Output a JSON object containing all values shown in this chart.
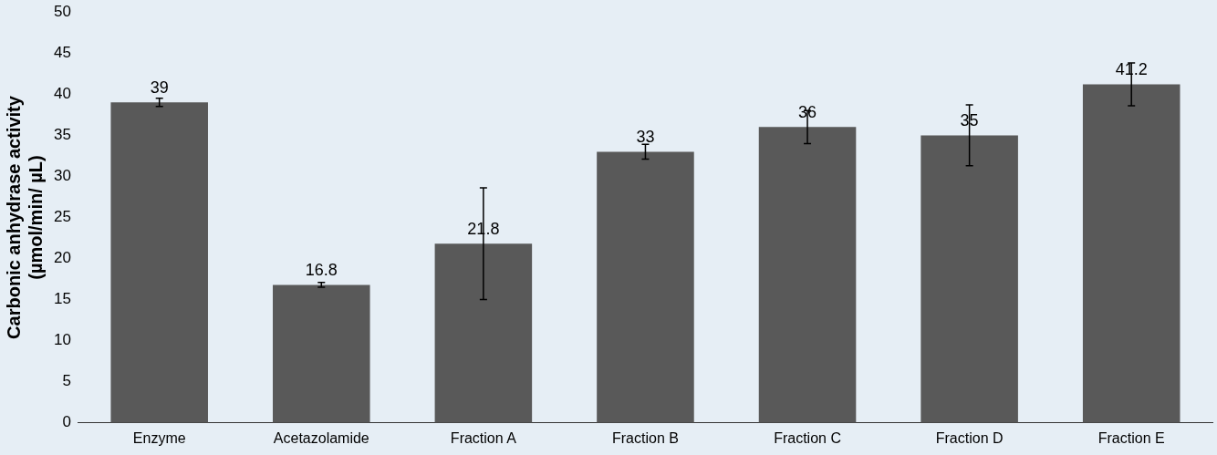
{
  "chart_data": {
    "type": "bar",
    "ylabel": "Carbonic anhydrase activity\n(µmol/min/ µL)",
    "categories": [
      "Enzyme",
      "Acetazolamide",
      "Fraction A",
      "Fraction B",
      "Fraction C",
      "Fraction D",
      "Fraction E"
    ],
    "values": [
      39,
      16.8,
      21.8,
      33,
      36,
      35,
      41.2
    ],
    "errors": [
      0.5,
      0.3,
      6.8,
      0.9,
      2,
      3.7,
      2.6
    ],
    "color": "#595959",
    "ylim": [
      0,
      50
    ],
    "yticks": [
      0,
      5,
      10,
      15,
      20,
      25,
      30,
      35,
      40,
      45,
      50
    ],
    "grid": false,
    "legend": false,
    "data_labels": true
  }
}
